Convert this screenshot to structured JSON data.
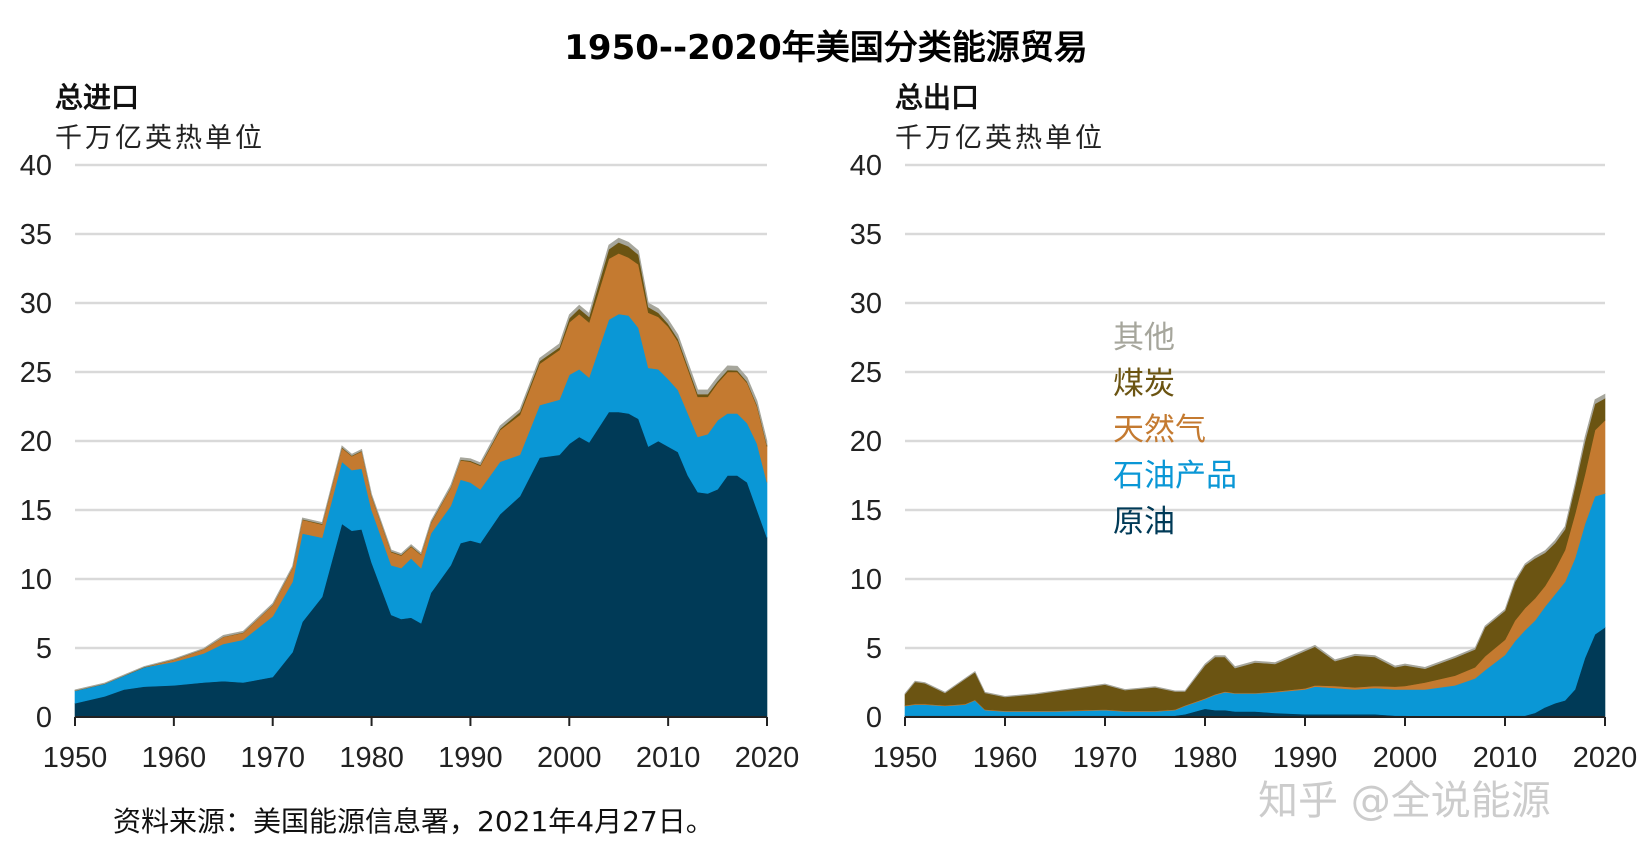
{
  "title": "1950--2020年美国分类能源贸易",
  "source": "资料来源：美国能源信息署，2021年4月27日。",
  "watermark": "知乎 @全说能源",
  "colors": {
    "原油": "#003a57",
    "石油产品": "#0a97d6",
    "天然气": "#c47a30",
    "煤炭": "#6b5412",
    "其他": "#a6a69c"
  },
  "legend": [
    {
      "label": "其他",
      "color": "#a6a69c"
    },
    {
      "label": "煤炭",
      "color": "#6b5412"
    },
    {
      "label": "天然气",
      "color": "#c47a30"
    },
    {
      "label": "石油产品",
      "color": "#0a97d6"
    },
    {
      "label": "原油",
      "color": "#003a57"
    }
  ],
  "chart_data": [
    {
      "type": "area",
      "stacked": true,
      "title": "总进口",
      "ylabel": "千万亿英热单位",
      "ylim": [
        0,
        40
      ],
      "yticks": [
        "0",
        "5",
        "10",
        "15",
        "20",
        "25",
        "30",
        "35",
        "40"
      ],
      "xlim": [
        1950,
        2020
      ],
      "xticks": [
        "1950",
        "1960",
        "1970",
        "1980",
        "1990",
        "2000",
        "2010",
        "2020"
      ],
      "grid": true,
      "x": [
        1950,
        1953,
        1955,
        1957,
        1960,
        1963,
        1965,
        1967,
        1970,
        1972,
        1973,
        1975,
        1977,
        1978,
        1979,
        1980,
        1982,
        1983,
        1984,
        1985,
        1986,
        1988,
        1989,
        1990,
        1991,
        1993,
        1995,
        1997,
        1999,
        2000,
        2001,
        2002,
        2004,
        2005,
        2006,
        2007,
        2008,
        2009,
        2010,
        2011,
        2012,
        2013,
        2014,
        2015,
        2016,
        2017,
        2018,
        2019,
        2020
      ],
      "series": [
        {
          "name": "原油",
          "values": [
            1.0,
            1.5,
            2.0,
            2.2,
            2.3,
            2.5,
            2.6,
            2.5,
            2.9,
            4.7,
            6.9,
            8.7,
            14.0,
            13.5,
            13.6,
            11.2,
            7.4,
            7.1,
            7.2,
            6.8,
            9.0,
            11.0,
            12.6,
            12.8,
            12.6,
            14.7,
            16.0,
            18.8,
            19.0,
            19.8,
            20.3,
            19.9,
            22.1,
            22.1,
            22.0,
            21.6,
            19.6,
            20.0,
            19.6,
            19.2,
            17.5,
            16.3,
            16.2,
            16.5,
            17.5,
            17.5,
            17.0,
            15.0,
            13.0
          ]
        },
        {
          "name": "石油产品",
          "values": [
            0.9,
            0.9,
            1.0,
            1.4,
            1.7,
            2.1,
            2.7,
            3.1,
            4.4,
            5.1,
            6.4,
            4.3,
            4.5,
            4.4,
            4.4,
            3.8,
            3.6,
            3.7,
            4.3,
            4.0,
            4.3,
            4.3,
            4.6,
            4.2,
            3.9,
            3.8,
            3.0,
            3.8,
            4.0,
            5.0,
            4.9,
            4.7,
            6.7,
            7.1,
            7.1,
            6.6,
            5.7,
            5.2,
            4.9,
            4.5,
            4.5,
            4.0,
            4.3,
            5.0,
            4.5,
            4.5,
            4.3,
            4.8,
            4.0
          ]
        },
        {
          "name": "天然气",
          "values": [
            0,
            0,
            0,
            0,
            0.15,
            0.3,
            0.5,
            0.5,
            0.8,
            1.0,
            1.0,
            0.95,
            1.0,
            1.0,
            1.25,
            1.0,
            0.95,
            0.9,
            0.85,
            0.95,
            0.75,
            1.3,
            1.4,
            1.5,
            1.7,
            2.3,
            2.9,
            3.0,
            3.6,
            3.8,
            4.0,
            4.0,
            4.4,
            4.4,
            4.2,
            4.6,
            4.0,
            3.8,
            3.8,
            3.5,
            3.2,
            2.9,
            2.7,
            2.7,
            3.0,
            3.0,
            2.9,
            2.7,
            2.6
          ]
        },
        {
          "name": "煤炭",
          "values": [
            0.02,
            0.02,
            0.02,
            0.02,
            0.02,
            0.02,
            0.02,
            0.02,
            0.03,
            0.03,
            0.03,
            0.05,
            0.05,
            0.05,
            0.05,
            0.05,
            0.05,
            0.05,
            0.05,
            0.05,
            0.05,
            0.05,
            0.05,
            0.07,
            0.08,
            0.1,
            0.2,
            0.2,
            0.2,
            0.3,
            0.4,
            0.4,
            0.7,
            0.8,
            0.8,
            0.7,
            0.4,
            0.3,
            0.2,
            0.2,
            0.2,
            0.2,
            0.2,
            0.15,
            0.15,
            0.12,
            0.1,
            0.1,
            0.1
          ]
        },
        {
          "name": "其他",
          "values": [
            0.05,
            0.05,
            0.05,
            0.05,
            0.05,
            0.05,
            0.1,
            0.1,
            0.1,
            0.1,
            0.1,
            0.1,
            0.1,
            0.1,
            0.1,
            0.1,
            0.1,
            0.1,
            0.1,
            0.1,
            0.1,
            0.15,
            0.15,
            0.15,
            0.15,
            0.2,
            0.2,
            0.2,
            0.25,
            0.25,
            0.25,
            0.25,
            0.3,
            0.3,
            0.3,
            0.3,
            0.3,
            0.3,
            0.3,
            0.3,
            0.3,
            0.3,
            0.3,
            0.3,
            0.3,
            0.3,
            0.3,
            0.3,
            0.3
          ]
        }
      ]
    },
    {
      "type": "area",
      "stacked": true,
      "title": "总出口",
      "ylabel": "千万亿英热单位",
      "ylim": [
        0,
        40
      ],
      "yticks": [
        "0",
        "5",
        "10",
        "15",
        "20",
        "25",
        "30",
        "35",
        "40"
      ],
      "xlim": [
        1950,
        2020
      ],
      "xticks": [
        "1950",
        "1960",
        "1970",
        "1980",
        "1990",
        "2000",
        "2010",
        "2020"
      ],
      "grid": true,
      "legend_position": "center-left",
      "x": [
        1950,
        1951,
        1952,
        1954,
        1956,
        1957,
        1958,
        1960,
        1963,
        1965,
        1970,
        1972,
        1975,
        1977,
        1978,
        1980,
        1981,
        1982,
        1983,
        1985,
        1987,
        1990,
        1991,
        1993,
        1995,
        1997,
        1999,
        2000,
        2002,
        2005,
        2007,
        2008,
        2010,
        2011,
        2012,
        2013,
        2014,
        2015,
        2016,
        2017,
        2018,
        2019,
        2020
      ],
      "series": [
        {
          "name": "原油",
          "values": [
            0.1,
            0.1,
            0.1,
            0.1,
            0.1,
            0.1,
            0.1,
            0.1,
            0.1,
            0.1,
            0.1,
            0.1,
            0.1,
            0.1,
            0.2,
            0.6,
            0.5,
            0.5,
            0.4,
            0.4,
            0.3,
            0.2,
            0.2,
            0.2,
            0.2,
            0.2,
            0.1,
            0.1,
            0.05,
            0.05,
            0.05,
            0.05,
            0.1,
            0.1,
            0.1,
            0.3,
            0.7,
            1.0,
            1.2,
            2.0,
            4.3,
            6.0,
            6.5
          ]
        },
        {
          "name": "石油产品",
          "values": [
            0.7,
            0.8,
            0.8,
            0.7,
            0.8,
            1.1,
            0.4,
            0.3,
            0.3,
            0.3,
            0.4,
            0.3,
            0.3,
            0.4,
            0.6,
            0.7,
            1.1,
            1.3,
            1.3,
            1.3,
            1.5,
            1.8,
            2.0,
            1.9,
            1.8,
            1.9,
            1.9,
            1.9,
            1.95,
            2.25,
            2.75,
            3.35,
            4.4,
            5.4,
            6.2,
            6.7,
            7.3,
            7.9,
            8.6,
            9.5,
            9.7,
            10.0,
            9.7
          ]
        },
        {
          "name": "天然气",
          "values": [
            0.05,
            0.05,
            0.05,
            0.05,
            0.05,
            0.05,
            0.05,
            0.05,
            0.05,
            0.05,
            0.05,
            0.05,
            0.05,
            0.05,
            0.05,
            0.05,
            0.05,
            0.05,
            0.05,
            0.05,
            0.05,
            0.08,
            0.1,
            0.15,
            0.15,
            0.15,
            0.2,
            0.25,
            0.5,
            0.7,
            0.8,
            1.0,
            1.1,
            1.5,
            1.6,
            1.6,
            1.5,
            1.8,
            2.3,
            3.2,
            3.6,
            4.8,
            5.3
          ]
        },
        {
          "name": "煤炭",
          "values": [
            0.8,
            1.6,
            1.5,
            0.9,
            1.8,
            2.0,
            1.2,
            1.0,
            1.2,
            1.4,
            1.8,
            1.5,
            1.7,
            1.3,
            1.0,
            2.4,
            2.7,
            2.5,
            1.8,
            2.2,
            2.0,
            2.7,
            2.8,
            1.8,
            2.3,
            2.1,
            1.4,
            1.5,
            1.0,
            1.3,
            1.3,
            2.1,
            2.1,
            2.8,
            3.1,
            2.9,
            2.4,
            1.9,
            1.5,
            2.0,
            2.4,
            1.9,
            1.6
          ]
        },
        {
          "name": "其他",
          "values": [
            0.05,
            0.05,
            0.05,
            0.05,
            0.05,
            0.05,
            0.05,
            0.05,
            0.05,
            0.05,
            0.05,
            0.05,
            0.05,
            0.05,
            0.05,
            0.1,
            0.1,
            0.1,
            0.1,
            0.1,
            0.1,
            0.1,
            0.1,
            0.1,
            0.1,
            0.1,
            0.1,
            0.1,
            0.1,
            0.1,
            0.1,
            0.1,
            0.1,
            0.1,
            0.1,
            0.15,
            0.15,
            0.2,
            0.2,
            0.2,
            0.3,
            0.3,
            0.3
          ]
        }
      ]
    }
  ]
}
